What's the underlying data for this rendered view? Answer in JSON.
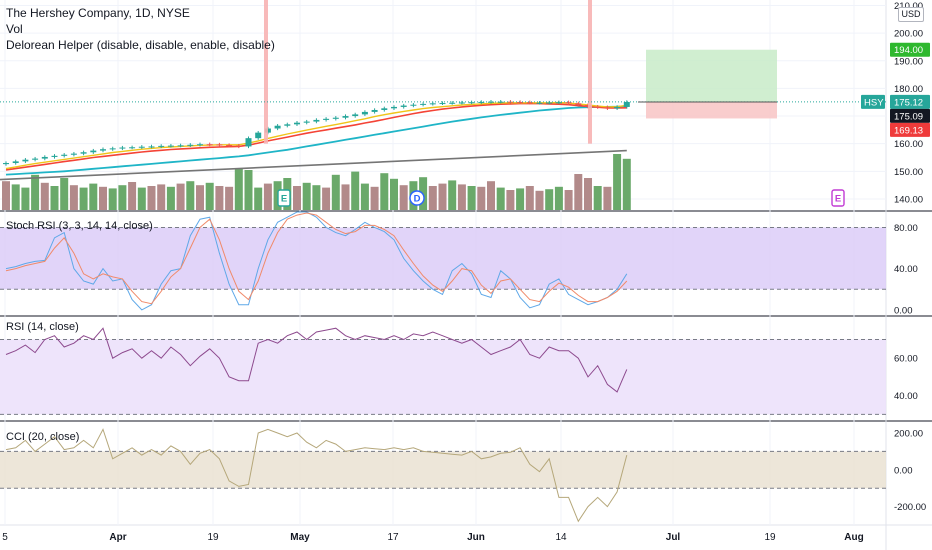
{
  "header": {
    "title": "The Hershey Company, 1D, NYSE",
    "vol_label": "Vol",
    "indicator_label": "Delorean Helper (disable, disable, enable, disable)",
    "scale_button": "USD"
  },
  "colors": {
    "up": "#26a69a",
    "down": "#ef5350",
    "ema_red": "#f44336",
    "ema_yellow": "#f0c419",
    "sma_teal": "#1fb5c7",
    "trend_gray": "#757575",
    "vol_up": "#6aa96a",
    "vol_down": "#b28a8a",
    "rsi_band": "#d9c9f7",
    "cci_band": "#e8e0d0",
    "stoch_k": "#5fa8e8",
    "stoch_d": "#f08a6a",
    "rsi_line": "#8d4a8e",
    "cci_line": "#b5a77a"
  },
  "x_axis": {
    "labels": [
      "5",
      "Apr",
      "19",
      "May",
      "17",
      "Jun",
      "14",
      "Jul",
      "19",
      "Aug"
    ]
  },
  "events": [
    "E",
    "D",
    "E"
  ],
  "panes": [
    {
      "label": "Stoch RSI (3, 3, 14, 14, close)",
      "ticks": [
        "80.00",
        "40.00",
        "0.00"
      ]
    },
    {
      "label": "RSI (14, close)",
      "ticks": [
        "60.00",
        "40.00"
      ]
    },
    {
      "label": "CCI (20, close)",
      "ticks": [
        "200.00",
        "0.00",
        "-200.00"
      ]
    }
  ],
  "price_axis": {
    "ticks": [
      "210.00",
      "200.00",
      "190.00",
      "180.00",
      "170.00",
      "160.00",
      "150.00",
      "140.00"
    ]
  },
  "badges": {
    "target": "194.00",
    "symbol": "HSY",
    "last": "175.12",
    "prev": "175.09",
    "stop": "169.13"
  },
  "chart_data": [
    {
      "type": "candlestick",
      "title": "The Hershey Company, 1D, NYSE",
      "ylim": [
        136,
        212
      ],
      "x_start": "2021-03-05",
      "close": [
        153.0,
        153.6,
        154.2,
        154.6,
        155.2,
        155.6,
        156.0,
        156.4,
        156.9,
        157.5,
        158.0,
        158.3,
        158.6,
        158.7,
        158.9,
        159.0,
        159.2,
        159.3,
        159.4,
        159.6,
        159.8,
        159.7,
        159.5,
        159.3,
        159.0,
        162.0,
        164.0,
        165.5,
        166.5,
        167.0,
        167.6,
        168.0,
        168.6,
        169.0,
        169.4,
        170.0,
        170.6,
        171.5,
        172.2,
        172.8,
        173.3,
        173.8,
        174.1,
        174.4,
        174.6,
        174.7,
        174.8,
        174.9,
        175.0,
        175.1,
        175.2,
        175.2,
        175.1,
        175.0,
        174.8,
        174.8,
        174.9,
        175.0,
        174.6,
        174.0,
        173.4,
        173.2,
        172.8,
        173.3,
        175.1
      ],
      "series": [
        {
          "name": "",
          "kind": "ema_fast",
          "values": [
            151.0,
            151.6,
            152.2,
            152.8,
            153.3,
            153.8,
            154.3,
            154.8,
            155.3,
            155.8,
            156.3,
            156.8,
            157.2,
            157.6,
            158.0,
            158.3,
            158.6,
            158.8,
            159.0,
            159.2,
            159.4,
            159.5,
            159.6,
            159.6,
            159.6,
            160.2,
            161.0,
            161.9,
            162.7,
            163.5,
            164.2,
            164.9,
            165.6,
            166.3,
            166.9,
            167.6,
            168.3,
            169.0,
            169.8,
            170.5,
            171.1,
            171.7,
            172.2,
            172.7,
            173.1,
            173.4,
            173.7,
            174.0,
            174.2,
            174.4,
            174.6,
            174.7,
            174.8,
            174.8,
            174.8,
            174.8,
            174.8,
            174.9,
            174.7,
            174.4,
            174.0,
            173.6,
            173.3,
            173.4,
            173.9
          ]
        },
        {
          "name": "",
          "kind": "ema_slow",
          "values": [
            150.5,
            151.0,
            151.5,
            152.0,
            152.5,
            153.0,
            153.5,
            154.0,
            154.5,
            155.0,
            155.4,
            155.8,
            156.2,
            156.6,
            157.0,
            157.3,
            157.6,
            157.9,
            158.1,
            158.3,
            158.5,
            158.7,
            158.8,
            158.9,
            159.0,
            159.5,
            160.2,
            161.0,
            161.7,
            162.4,
            163.1,
            163.8,
            164.4,
            165.0,
            165.6,
            166.2,
            166.8,
            167.5,
            168.1,
            168.8,
            169.5,
            170.2,
            170.9,
            171.5,
            172.0,
            172.5,
            172.9,
            173.3,
            173.6,
            173.9,
            174.1,
            174.3,
            174.4,
            174.5,
            174.5,
            174.5,
            174.4,
            174.3,
            174.1,
            173.8,
            173.5,
            173.2,
            172.9,
            172.9,
            173.0
          ]
        },
        {
          "name": "",
          "kind": "sma",
          "values": [
            148.8,
            149.0,
            149.2,
            149.4,
            149.6,
            149.8,
            150.0,
            150.3,
            150.6,
            150.9,
            151.2,
            151.5,
            151.8,
            152.1,
            152.4,
            152.7,
            153.0,
            153.3,
            153.6,
            153.9,
            154.2,
            154.5,
            154.8,
            155.1,
            155.4,
            155.8,
            156.3,
            156.8,
            157.3,
            157.8,
            158.4,
            159.0,
            159.6,
            160.2,
            160.8,
            161.4,
            162.0,
            162.6,
            163.2,
            163.8,
            164.4,
            165.0,
            165.6,
            166.2,
            166.8,
            167.4,
            168.0,
            168.5,
            169.0,
            169.5,
            170.0,
            170.4,
            170.8,
            171.2,
            171.6,
            172.0,
            172.3,
            172.6,
            172.9,
            173.1,
            173.2,
            173.3,
            173.3,
            173.4,
            173.6
          ]
        }
      ]
    },
    {
      "type": "bar",
      "title": "Vol",
      "values": [
        36,
        32,
        28,
        44,
        34,
        30,
        40,
        31,
        28,
        33,
        29,
        27,
        31,
        35,
        28,
        30,
        32,
        29,
        33,
        36,
        31,
        34,
        30,
        29,
        52,
        50,
        28,
        33,
        36,
        40,
        30,
        34,
        31,
        28,
        44,
        32,
        48,
        33,
        29,
        46,
        39,
        31,
        36,
        41,
        30,
        33,
        37,
        32,
        30,
        29,
        36,
        28,
        25,
        27,
        30,
        24,
        26,
        29,
        25,
        45,
        40,
        30,
        29,
        70,
        64
      ],
      "up": [
        0,
        1,
        1,
        1,
        0,
        1,
        1,
        0,
        1,
        1,
        0,
        1,
        1,
        0,
        1,
        0,
        0,
        1,
        0,
        1,
        0,
        1,
        0,
        0,
        1,
        1,
        1,
        0,
        1,
        1,
        0,
        1,
        1,
        0,
        1,
        0,
        1,
        1,
        0,
        1,
        1,
        0,
        1,
        1,
        0,
        0,
        1,
        0,
        1,
        0,
        0,
        1,
        0,
        1,
        0,
        0,
        1,
        1,
        0,
        0,
        0,
        1,
        0,
        1,
        1
      ]
    },
    {
      "type": "line",
      "title": "Stoch RSI (3, 3, 14, 14, close)",
      "ylim": [
        -5,
        95
      ],
      "series": [
        {
          "name": "",
          "kind": "k",
          "values": [
            40,
            42,
            45,
            47,
            48,
            70,
            75,
            40,
            28,
            25,
            40,
            28,
            30,
            10,
            0,
            5,
            25,
            38,
            40,
            72,
            88,
            90,
            55,
            25,
            5,
            5,
            40,
            68,
            85,
            90,
            95,
            95,
            90,
            80,
            75,
            72,
            78,
            85,
            80,
            76,
            68,
            50,
            38,
            28,
            20,
            15,
            38,
            45,
            35,
            15,
            12,
            38,
            30,
            12,
            2,
            5,
            25,
            30,
            15,
            10,
            5,
            8,
            12,
            20,
            35
          ]
        },
        {
          "name": "",
          "kind": "d",
          "values": [
            38,
            40,
            43,
            45,
            47,
            60,
            70,
            55,
            35,
            30,
            35,
            32,
            30,
            18,
            8,
            6,
            18,
            32,
            40,
            60,
            80,
            88,
            68,
            40,
            18,
            10,
            28,
            55,
            75,
            88,
            92,
            94,
            92,
            85,
            78,
            74,
            76,
            82,
            82,
            78,
            72,
            58,
            45,
            33,
            24,
            18,
            28,
            40,
            38,
            24,
            16,
            28,
            30,
            20,
            10,
            8,
            18,
            26,
            22,
            14,
            8,
            8,
            12,
            18,
            28
          ]
        }
      ]
    },
    {
      "type": "line",
      "title": "RSI (14, close)",
      "ylim": [
        27,
        82
      ],
      "series": [
        {
          "name": "",
          "kind": "rsi",
          "values": [
            62,
            64,
            67,
            63,
            70,
            72,
            66,
            68,
            72,
            70,
            76,
            60,
            63,
            65,
            60,
            64,
            60,
            66,
            62,
            56,
            61,
            65,
            60,
            50,
            48,
            48,
            68,
            70,
            68,
            72,
            74,
            70,
            74,
            75,
            76,
            72,
            70,
            72,
            71,
            70,
            72,
            70,
            73,
            72,
            74,
            72,
            70,
            68,
            70,
            66,
            62,
            64,
            66,
            70,
            62,
            60,
            66,
            64,
            64,
            60,
            50,
            56,
            46,
            42,
            54
          ]
        }
      ]
    },
    {
      "type": "line",
      "title": "CCI (20, close)",
      "ylim": [
        -300,
        260
      ],
      "series": [
        {
          "name": "",
          "kind": "cci",
          "values": [
            110,
            120,
            160,
            100,
            140,
            180,
            110,
            120,
            160,
            120,
            220,
            60,
            90,
            120,
            80,
            110,
            80,
            130,
            100,
            30,
            90,
            110,
            60,
            -60,
            -90,
            -80,
            200,
            220,
            200,
            180,
            200,
            150,
            120,
            160,
            140,
            100,
            110,
            120,
            115,
            110,
            120,
            110,
            120,
            100,
            95,
            90,
            85,
            80,
            100,
            60,
            70,
            90,
            95,
            120,
            30,
            -10,
            60,
            -150,
            -150,
            -280,
            -200,
            -150,
            -200,
            -120,
            80
          ]
        }
      ]
    }
  ]
}
